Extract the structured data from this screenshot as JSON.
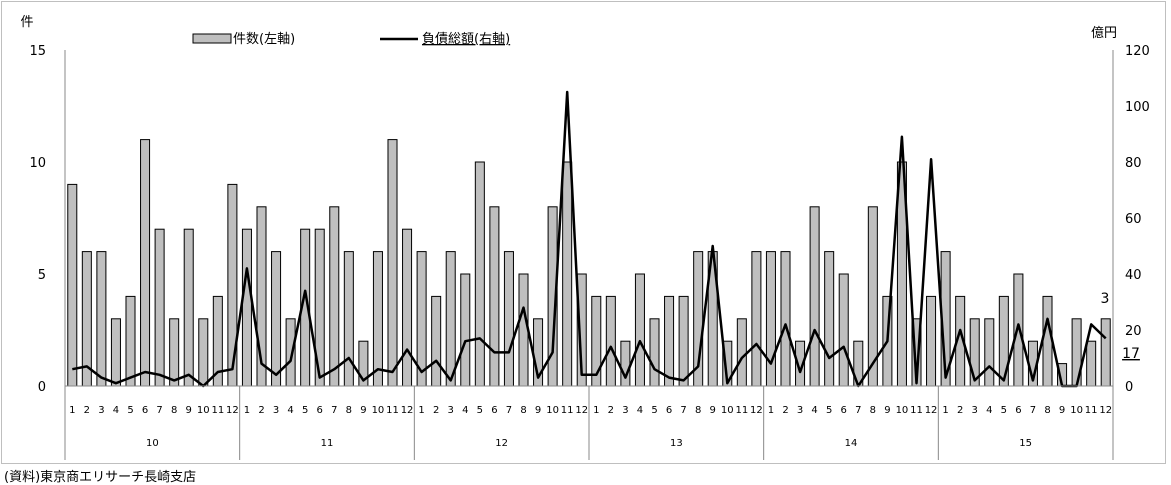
{
  "chart_data": {
    "type": "bar",
    "legend": {
      "placement": "top-center"
    },
    "y_left": {
      "label": "件",
      "ylim": [
        0,
        15
      ],
      "ticks": [
        0,
        5,
        10,
        15
      ]
    },
    "y_right": {
      "label": "億円",
      "ylim": [
        0,
        120
      ],
      "ticks": [
        0,
        20,
        40,
        60,
        80,
        100,
        120
      ]
    },
    "years": [
      "10",
      "11",
      "12",
      "13",
      "14",
      "15"
    ],
    "months": [
      "1",
      "2",
      "3",
      "4",
      "5",
      "6",
      "7",
      "8",
      "9",
      "10",
      "11",
      "12"
    ],
    "series": [
      {
        "name": "件数(左軸)",
        "kind": "bar",
        "axis": "left",
        "color": "#bfbfbf",
        "values": [
          9,
          6,
          6,
          3,
          4,
          11,
          7,
          3,
          7,
          3,
          4,
          9,
          7,
          8,
          6,
          3,
          7,
          7,
          8,
          6,
          2,
          6,
          11,
          7,
          6,
          4,
          6,
          5,
          10,
          8,
          6,
          5,
          3,
          8,
          10,
          5,
          4,
          4,
          2,
          5,
          3,
          4,
          4,
          6,
          6,
          2,
          3,
          6,
          6,
          6,
          2,
          8,
          6,
          5,
          2,
          8,
          4,
          10,
          3,
          4,
          6,
          4,
          3,
          3,
          4,
          5,
          2,
          4,
          1,
          3,
          2,
          3
        ]
      },
      {
        "name": "負債総額(右軸)",
        "kind": "line",
        "axis": "right",
        "color": "#000000",
        "values": [
          6,
          7,
          3,
          1,
          3,
          5,
          4,
          2,
          4,
          0,
          5,
          6,
          42,
          8,
          4,
          9,
          34,
          3,
          6,
          10,
          2,
          6,
          5,
          13,
          5,
          9,
          2,
          16,
          17,
          12,
          12,
          28,
          3,
          12,
          105,
          4,
          4,
          14,
          3,
          16,
          6,
          3,
          2,
          7,
          50,
          1,
          10,
          15,
          8,
          22,
          5,
          20,
          10,
          14,
          0,
          8,
          16,
          89,
          1,
          81,
          3,
          20,
          2,
          7,
          2,
          22,
          2,
          24,
          0,
          0,
          22,
          17
        ]
      }
    ],
    "annotations": [
      {
        "text": "3",
        "series": "件数(左軸)",
        "index": 71
      },
      {
        "text": "17",
        "series": "負債総額(右軸)",
        "index": 71
      }
    ]
  },
  "source_note": "(資料)東京商エリサーチ長崎支店"
}
